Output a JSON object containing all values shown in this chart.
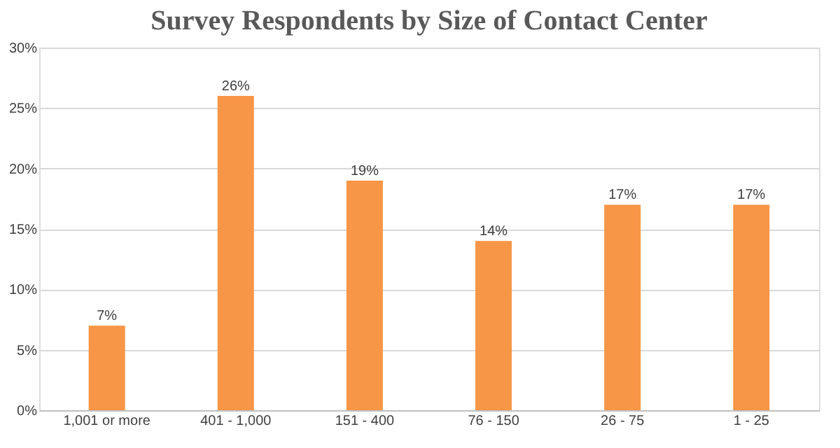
{
  "chart_data": {
    "type": "bar",
    "title": "Survey Respondents by Size of Contact Center",
    "categories": [
      "1,001 or more",
      "401 - 1,000",
      "151 - 400",
      "76 - 150",
      "26 - 75",
      "1 - 25"
    ],
    "values": [
      7,
      26,
      19,
      14,
      17,
      17
    ],
    "value_labels": [
      "7%",
      "26%",
      "19%",
      "14%",
      "17%",
      "17%"
    ],
    "color": "#f79646",
    "ylim": [
      0,
      30
    ],
    "yticks": [
      {
        "value": 0,
        "label": "0%"
      },
      {
        "value": 5,
        "label": "5%"
      },
      {
        "value": 10,
        "label": "10%"
      },
      {
        "value": 15,
        "label": "15%"
      },
      {
        "value": 20,
        "label": "20%"
      },
      {
        "value": 25,
        "label": "25%"
      },
      {
        "value": 30,
        "label": "30%"
      }
    ],
    "grid": "y"
  }
}
